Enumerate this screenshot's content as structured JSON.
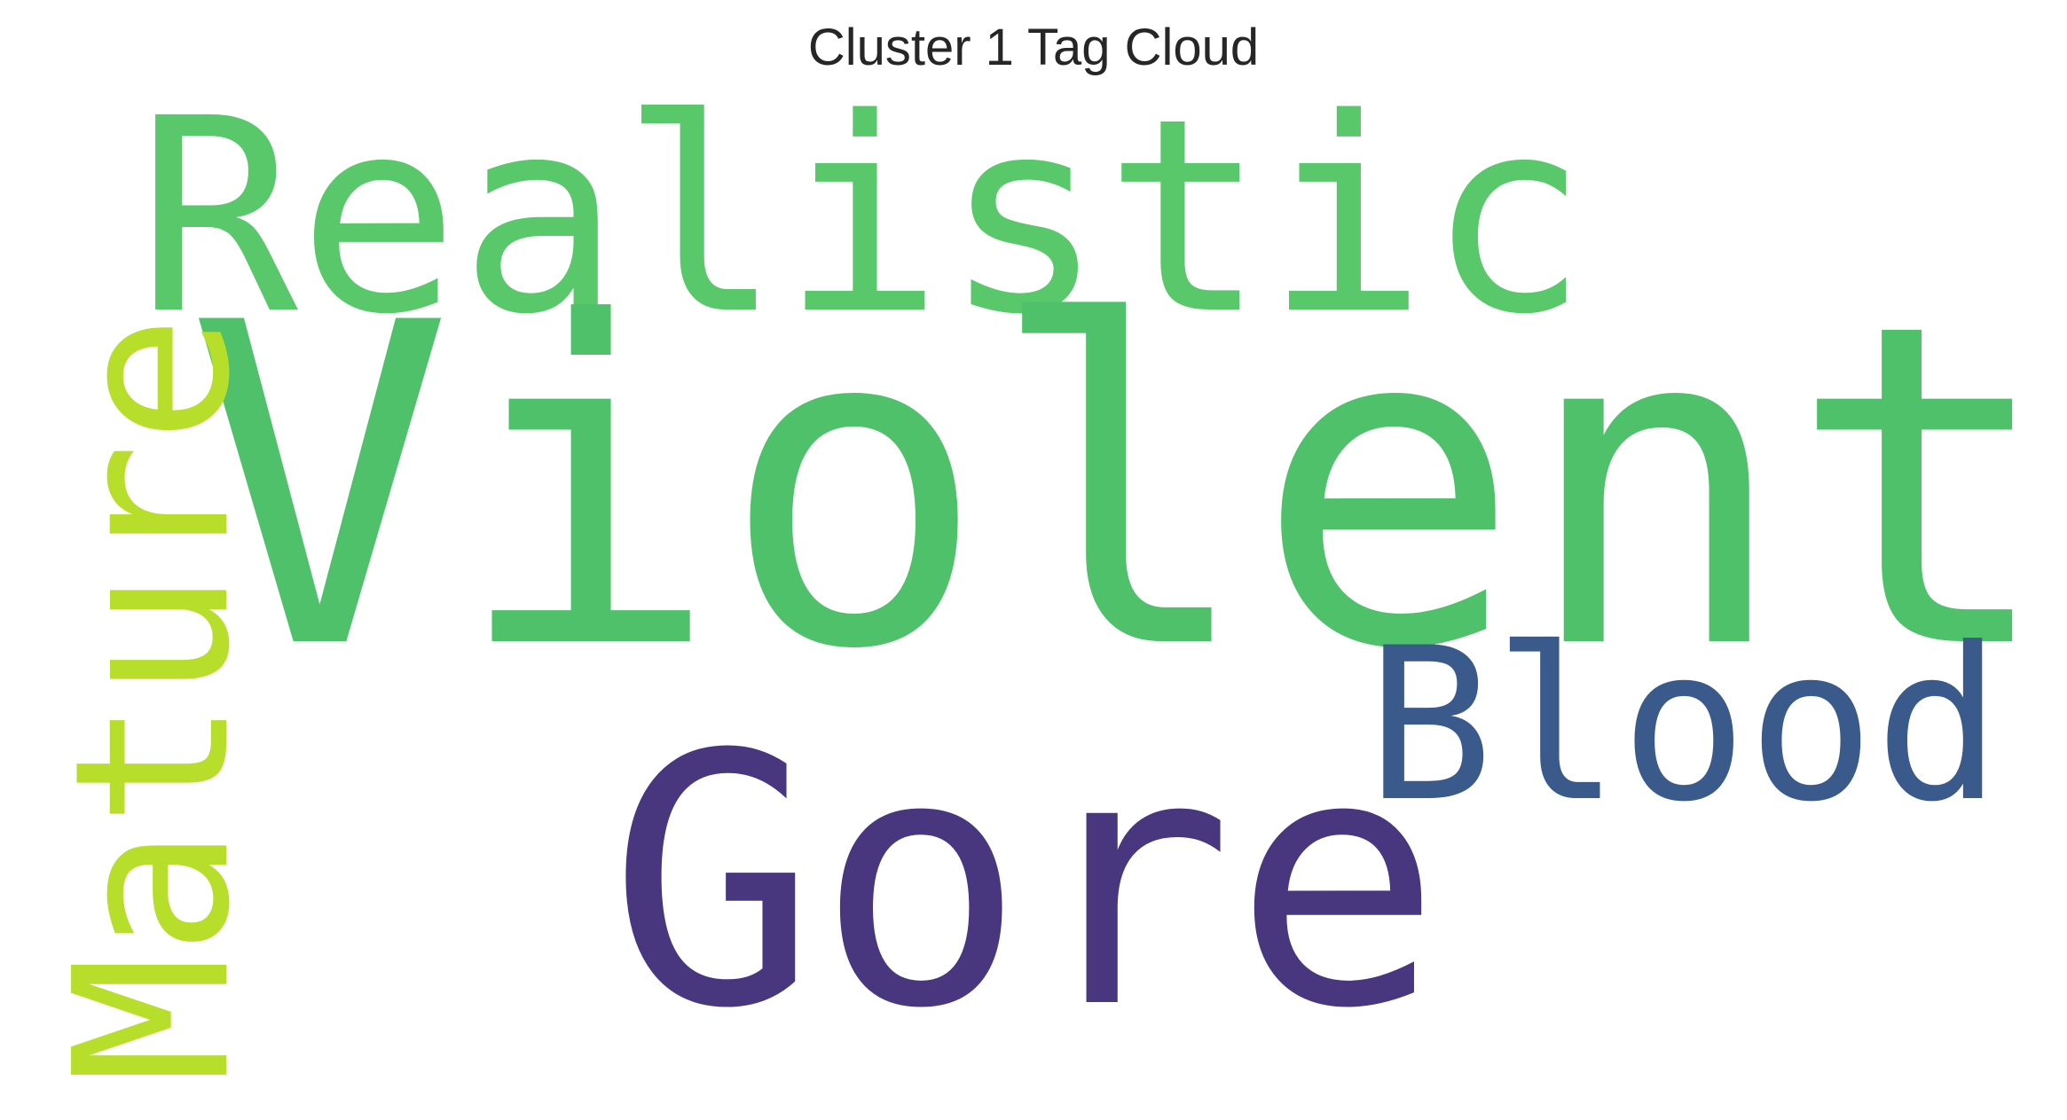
{
  "title": "Cluster 1 Tag Cloud",
  "words": {
    "violent": {
      "text": "Violent",
      "color": "#4fc16b",
      "orientation": "horizontal"
    },
    "realistic": {
      "text": "Realistic",
      "color": "#59c86a",
      "orientation": "horizontal"
    },
    "gore": {
      "text": "Gore",
      "color": "#48367f",
      "orientation": "horizontal"
    },
    "blood": {
      "text": "Blood",
      "color": "#3b5a8c",
      "orientation": "horizontal"
    },
    "mature": {
      "text": "Mature",
      "color": "#b8de2c",
      "orientation": "vertical"
    }
  }
}
